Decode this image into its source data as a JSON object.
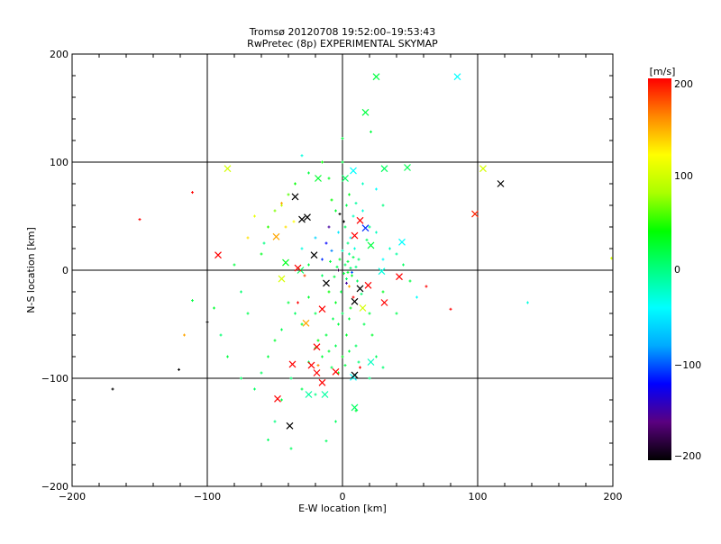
{
  "chart_data": {
    "type": "scatter",
    "title": "Tromsø 20120708 19:52:00–19:53:43",
    "subtitle": "RwPretec (8p) EXPERIMENTAL SKYMAP",
    "xlabel": "E-W location [km]",
    "ylabel": "N-S location [km]",
    "xlim": [
      -200,
      200
    ],
    "ylim": [
      -200,
      200
    ],
    "xticks": [
      "−200",
      "−100",
      "0",
      "100",
      "200"
    ],
    "yticks": [
      "−200",
      "−100",
      "0",
      "100",
      "200"
    ],
    "grid_lines_km": [
      -100,
      0,
      100
    ],
    "colorbar": {
      "label": "[m/s]",
      "range": [
        -200,
        200
      ],
      "ticks": [
        "200",
        "100",
        "0",
        "−100",
        "−200"
      ],
      "colors": [
        "#000000",
        "#5a0080",
        "#0000ff",
        "#00aaff",
        "#00ffff",
        "#00ff80",
        "#00ff00",
        "#aaff00",
        "#ffff00",
        "#ff8800",
        "#ff0000"
      ],
      "placement": "right"
    },
    "series_note": "points: [E-W km, N-S km, velocity m/s]",
    "crosses": [
      [
        25,
        179,
        20
      ],
      [
        85,
        179,
        -40
      ],
      [
        17,
        146,
        20
      ],
      [
        104,
        94,
        100
      ],
      [
        31,
        94,
        10
      ],
      [
        48,
        95,
        15
      ],
      [
        -85,
        94,
        100
      ],
      [
        8,
        92,
        -40
      ],
      [
        2,
        85,
        10
      ],
      [
        -18,
        85,
        25
      ],
      [
        117,
        80,
        -200
      ],
      [
        -35,
        68,
        -200
      ],
      [
        -26,
        49,
        -200
      ],
      [
        -30,
        47,
        -200
      ],
      [
        13,
        46,
        200
      ],
      [
        17,
        39,
        -110
      ],
      [
        98,
        52,
        190
      ],
      [
        -49,
        31,
        150
      ],
      [
        9,
        32,
        200
      ],
      [
        21,
        23,
        20
      ],
      [
        44,
        26,
        -40
      ],
      [
        -92,
        14,
        200
      ],
      [
        -21,
        14,
        -200
      ],
      [
        -42,
        7,
        30
      ],
      [
        -31,
        0,
        10
      ],
      [
        -33,
        2,
        200
      ],
      [
        -45,
        -8,
        100
      ],
      [
        29,
        -1,
        -30
      ],
      [
        42,
        -6,
        200
      ],
      [
        -12,
        -12,
        -200
      ],
      [
        13,
        -17,
        -200
      ],
      [
        19,
        -14,
        200
      ],
      [
        31,
        -30,
        200
      ],
      [
        9,
        -29,
        -200
      ],
      [
        -15,
        -36,
        200
      ],
      [
        15,
        -35,
        100
      ],
      [
        -27,
        -49,
        150
      ],
      [
        -19,
        -71,
        200
      ],
      [
        -37,
        -87,
        200
      ],
      [
        -23,
        -88,
        200
      ],
      [
        21,
        -85,
        -20
      ],
      [
        8,
        -99,
        -40
      ],
      [
        -19,
        -95,
        200
      ],
      [
        -5,
        -94,
        200
      ],
      [
        9,
        -97,
        -200
      ],
      [
        -15,
        -104,
        200
      ],
      [
        -48,
        -119,
        200
      ],
      [
        -25,
        -115,
        -10
      ],
      [
        -13,
        -115,
        -10
      ],
      [
        9,
        -127,
        10
      ],
      [
        -39,
        -144,
        -200
      ]
    ],
    "dots": [
      [
        2,
        5,
        10
      ],
      [
        4,
        8,
        20
      ],
      [
        6,
        2,
        5
      ],
      [
        8,
        12,
        15
      ],
      [
        1,
        -3,
        20
      ],
      [
        -2,
        10,
        30
      ],
      [
        5,
        15,
        -10
      ],
      [
        10,
        3,
        0
      ],
      [
        3,
        -8,
        10
      ],
      [
        7,
        -5,
        25
      ],
      [
        -4,
        3,
        15
      ],
      [
        0,
        18,
        -20
      ],
      [
        12,
        10,
        5
      ],
      [
        9,
        20,
        -30
      ],
      [
        -6,
        -6,
        20
      ],
      [
        4,
        25,
        0
      ],
      [
        6,
        30,
        -40
      ],
      [
        -3,
        35,
        -50
      ],
      [
        2,
        40,
        10
      ],
      [
        8,
        50,
        -20
      ],
      [
        3,
        60,
        15
      ],
      [
        -5,
        55,
        25
      ],
      [
        10,
        62,
        -10
      ],
      [
        5,
        70,
        30
      ],
      [
        -8,
        65,
        40
      ],
      [
        15,
        55,
        -30
      ],
      [
        20,
        40,
        0
      ],
      [
        25,
        35,
        -20
      ],
      [
        18,
        28,
        10
      ],
      [
        14,
        -22,
        5
      ],
      [
        20,
        -40,
        20
      ],
      [
        16,
        -50,
        15
      ],
      [
        22,
        -60,
        25
      ],
      [
        10,
        -70,
        10
      ],
      [
        5,
        -75,
        20
      ],
      [
        0,
        -80,
        30
      ],
      [
        -5,
        -70,
        15
      ],
      [
        -10,
        -75,
        25
      ],
      [
        -15,
        -80,
        20
      ],
      [
        -20,
        -72,
        30
      ],
      [
        -25,
        -85,
        10
      ],
      [
        -8,
        -90,
        15
      ],
      [
        2,
        -88,
        20
      ],
      [
        -3,
        -95,
        30
      ],
      [
        12,
        -85,
        5
      ],
      [
        -12,
        -60,
        20
      ],
      [
        -18,
        -65,
        35
      ],
      [
        -30,
        -50,
        25
      ],
      [
        -35,
        -40,
        10
      ],
      [
        -40,
        -30,
        20
      ],
      [
        -45,
        -55,
        15
      ],
      [
        -50,
        -65,
        25
      ],
      [
        -55,
        -80,
        20
      ],
      [
        -60,
        -95,
        10
      ],
      [
        -38,
        -100,
        5
      ],
      [
        -30,
        -110,
        15
      ],
      [
        -20,
        -115,
        0
      ],
      [
        -45,
        -120,
        20
      ],
      [
        -65,
        -110,
        10
      ],
      [
        -70,
        -40,
        15
      ],
      [
        -75,
        -20,
        5
      ],
      [
        -80,
        5,
        20
      ],
      [
        -60,
        15,
        30
      ],
      [
        -55,
        40,
        50
      ],
      [
        -50,
        55,
        70
      ],
      [
        -45,
        60,
        90
      ],
      [
        -40,
        70,
        60
      ],
      [
        -35,
        80,
        40
      ],
      [
        -25,
        90,
        20
      ],
      [
        -65,
        50,
        110
      ],
      [
        -70,
        30,
        130
      ],
      [
        -58,
        25,
        0
      ],
      [
        -30,
        20,
        -30
      ],
      [
        -20,
        30,
        -60
      ],
      [
        -10,
        40,
        -150
      ],
      [
        -12,
        25,
        -120
      ],
      [
        -8,
        18,
        -90
      ],
      [
        -15,
        10,
        -110
      ],
      [
        -25,
        5,
        20
      ],
      [
        -10,
        -20,
        40
      ],
      [
        -5,
        -30,
        30
      ],
      [
        0,
        -40,
        10
      ],
      [
        5,
        -45,
        20
      ],
      [
        -20,
        -40,
        15
      ],
      [
        -25,
        -25,
        25
      ],
      [
        -15,
        -5,
        10
      ],
      [
        30,
        10,
        -40
      ],
      [
        35,
        20,
        -20
      ],
      [
        40,
        15,
        -10
      ],
      [
        45,
        5,
        10
      ],
      [
        50,
        -10,
        20
      ],
      [
        30,
        -20,
        30
      ],
      [
        40,
        -40,
        15
      ],
      [
        25,
        -80,
        10
      ],
      [
        30,
        -90,
        5
      ],
      [
        20,
        -100,
        0
      ],
      [
        55,
        -25,
        -40
      ],
      [
        15,
        80,
        -20
      ],
      [
        25,
        75,
        -40
      ],
      [
        30,
        60,
        0
      ],
      [
        -10,
        85,
        30
      ],
      [
        0,
        100,
        20
      ],
      [
        -15,
        100,
        40
      ],
      [
        10,
        -130,
        20
      ],
      [
        -5,
        -140,
        10
      ],
      [
        -50,
        -140,
        0
      ],
      [
        -75,
        -100,
        10
      ],
      [
        -85,
        -80,
        20
      ],
      [
        -90,
        -60,
        5
      ],
      [
        -95,
        -35,
        25
      ],
      [
        3,
        -12,
        -150
      ],
      [
        7,
        -2,
        -100
      ],
      [
        -3,
        0,
        -180
      ],
      [
        1,
        45,
        -200
      ],
      [
        -2,
        52,
        -200
      ],
      [
        5,
        -15,
        150
      ],
      [
        8,
        -25,
        200
      ],
      [
        -28,
        -5,
        180
      ],
      [
        -33,
        -30,
        200
      ],
      [
        -36,
        45,
        120
      ],
      [
        -45,
        62,
        150
      ],
      [
        -42,
        40,
        130
      ],
      [
        13,
        -90,
        200
      ],
      [
        -18,
        -88,
        160
      ],
      [
        -150,
        47,
        200
      ],
      [
        -111,
        72,
        200
      ],
      [
        -170,
        -110,
        -200
      ],
      [
        -121,
        -92,
        -200
      ],
      [
        -100,
        -48,
        -200
      ],
      [
        80,
        -36,
        200
      ],
      [
        62,
        -15,
        200
      ],
      [
        137,
        -30,
        -30
      ],
      [
        199,
        11,
        100
      ],
      [
        -111,
        -28,
        20
      ],
      [
        -117,
        -60,
        150
      ],
      [
        -55,
        -157,
        10
      ],
      [
        -12,
        -158,
        10
      ],
      [
        -38,
        -165,
        10
      ],
      [
        0,
        122,
        20
      ],
      [
        21,
        128,
        20
      ],
      [
        -30,
        106,
        -30
      ],
      [
        -3,
        -50,
        20
      ],
      [
        3,
        -60,
        25
      ],
      [
        -7,
        -45,
        15
      ],
      [
        6,
        -35,
        30
      ],
      [
        -1,
        -20,
        20
      ],
      [
        11,
        -10,
        10
      ],
      [
        -9,
        8,
        20
      ],
      [
        4,
        -2,
        25
      ]
    ]
  }
}
